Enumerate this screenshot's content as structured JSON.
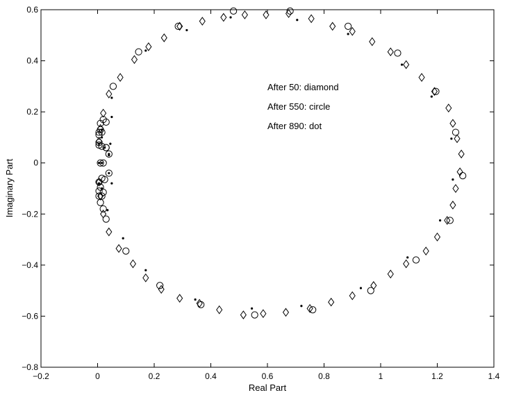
{
  "chart_data": {
    "type": "scatter",
    "title": "",
    "xlabel": "Real Part",
    "ylabel": "Imaginary Part",
    "xlim": [
      -0.2,
      1.4
    ],
    "ylim": [
      -0.8,
      0.6
    ],
    "xticks": [
      -0.2,
      0,
      0.2,
      0.4,
      0.6,
      0.8,
      1,
      1.2,
      1.4
    ],
    "xtick_labels": [
      "−0.2",
      "0",
      "0.2",
      "0.4",
      "0.6",
      "0.8",
      "1",
      "1.2",
      "1.4"
    ],
    "yticks": [
      -0.8,
      -0.6,
      -0.4,
      -0.2,
      0,
      0.2,
      0.4,
      0.6
    ],
    "ytick_labels": [
      "−0.8",
      "−0.6",
      "−0.4",
      "−0.2",
      "0",
      "0.2",
      "0.4",
      "0.6"
    ],
    "grid": false,
    "annotations": [
      "After 50:  diamond",
      "After 550:  circle",
      "After 890:  dot"
    ],
    "series": [
      {
        "marker": "diamond",
        "points": [
          [
            0.02,
            0.195
          ],
          [
            0.04,
            0.27
          ],
          [
            0.08,
            0.335
          ],
          [
            0.13,
            0.405
          ],
          [
            0.18,
            0.455
          ],
          [
            0.235,
            0.49
          ],
          [
            0.29,
            0.535
          ],
          [
            0.37,
            0.555
          ],
          [
            0.445,
            0.57
          ],
          [
            0.52,
            0.58
          ],
          [
            0.595,
            0.58
          ],
          [
            0.675,
            0.585
          ],
          [
            0.755,
            0.565
          ],
          [
            0.83,
            0.535
          ],
          [
            0.9,
            0.515
          ],
          [
            0.97,
            0.475
          ],
          [
            1.035,
            0.435
          ],
          [
            1.09,
            0.385
          ],
          [
            1.145,
            0.335
          ],
          [
            1.19,
            0.28
          ],
          [
            1.24,
            0.215
          ],
          [
            1.255,
            0.155
          ],
          [
            1.27,
            0.095
          ],
          [
            1.285,
            0.035
          ],
          [
            1.28,
            -0.035
          ],
          [
            1.265,
            -0.1
          ],
          [
            1.255,
            -0.165
          ],
          [
            1.235,
            -0.225
          ],
          [
            1.2,
            -0.29
          ],
          [
            1.16,
            -0.345
          ],
          [
            1.09,
            -0.395
          ],
          [
            1.035,
            -0.435
          ],
          [
            0.975,
            -0.48
          ],
          [
            0.9,
            -0.52
          ],
          [
            0.825,
            -0.545
          ],
          [
            0.75,
            -0.57
          ],
          [
            0.665,
            -0.585
          ],
          [
            0.585,
            -0.59
          ],
          [
            0.515,
            -0.595
          ],
          [
            0.43,
            -0.575
          ],
          [
            0.36,
            -0.55
          ],
          [
            0.29,
            -0.53
          ],
          [
            0.225,
            -0.495
          ],
          [
            0.17,
            -0.45
          ],
          [
            0.125,
            -0.395
          ],
          [
            0.075,
            -0.335
          ],
          [
            0.04,
            -0.27
          ],
          [
            0.02,
            -0.2
          ],
          [
            0.01,
            -0.13
          ],
          [
            0.005,
            -0.075
          ],
          [
            0.005,
            0.085
          ],
          [
            0.01,
            0.135
          ]
        ]
      },
      {
        "marker": "circle",
        "points": [
          [
            0.01,
            0.155
          ],
          [
            0.01,
            0.13
          ],
          [
            0.005,
            0.12
          ],
          [
            0.005,
            0.11
          ],
          [
            0.005,
            0.08
          ],
          [
            0.005,
            0.07
          ],
          [
            0.015,
            0.065
          ],
          [
            0.03,
            0.06
          ],
          [
            0.04,
            0.035
          ],
          [
            0.01,
            0.0
          ],
          [
            0.02,
            0.0
          ],
          [
            0.03,
            0.06
          ],
          [
            0.015,
            0.12
          ],
          [
            0.03,
            0.16
          ],
          [
            0.02,
            0.17
          ],
          [
            0.055,
            0.3
          ],
          [
            0.145,
            0.435
          ],
          [
            0.285,
            0.535
          ],
          [
            0.48,
            0.595
          ],
          [
            0.68,
            0.595
          ],
          [
            0.885,
            0.535
          ],
          [
            1.06,
            0.43
          ],
          [
            1.195,
            0.28
          ],
          [
            1.265,
            0.12
          ],
          [
            1.29,
            -0.05
          ],
          [
            1.245,
            -0.225
          ],
          [
            1.125,
            -0.38
          ],
          [
            0.965,
            -0.5
          ],
          [
            0.76,
            -0.575
          ],
          [
            0.555,
            -0.595
          ],
          [
            0.365,
            -0.555
          ],
          [
            0.22,
            -0.48
          ],
          [
            0.1,
            -0.345
          ],
          [
            0.03,
            -0.22
          ],
          [
            0.02,
            -0.18
          ],
          [
            0.01,
            -0.155
          ],
          [
            0.005,
            -0.13
          ],
          [
            0.005,
            -0.11
          ],
          [
            0.005,
            -0.075
          ],
          [
            0.015,
            -0.06
          ],
          [
            0.04,
            -0.04
          ],
          [
            0.025,
            -0.065
          ],
          [
            0.01,
            -0.095
          ],
          [
            0.02,
            -0.115
          ],
          [
            0.015,
            -0.13
          ]
        ]
      },
      {
        "marker": "dot",
        "points": [
          [
            0.05,
            0.255
          ],
          [
            0.05,
            0.18
          ],
          [
            0.045,
            0.075
          ],
          [
            0.04,
            0.035
          ],
          [
            0.025,
            0.06
          ],
          [
            0.015,
            0.13
          ],
          [
            0.015,
            0.1
          ],
          [
            0.005,
            0.075
          ],
          [
            0.005,
            0.0
          ],
          [
            0.015,
            0.0
          ],
          [
            0.005,
            -0.08
          ],
          [
            0.015,
            -0.1
          ],
          [
            0.04,
            -0.04
          ],
          [
            0.05,
            -0.08
          ],
          [
            0.035,
            -0.185
          ],
          [
            0.09,
            -0.295
          ],
          [
            0.17,
            -0.42
          ],
          [
            0.345,
            -0.535
          ],
          [
            0.545,
            -0.57
          ],
          [
            0.72,
            -0.56
          ],
          [
            0.93,
            -0.49
          ],
          [
            1.095,
            -0.37
          ],
          [
            1.21,
            -0.225
          ],
          [
            1.255,
            -0.065
          ],
          [
            1.25,
            0.095
          ],
          [
            1.18,
            0.26
          ],
          [
            1.075,
            0.385
          ],
          [
            0.885,
            0.505
          ],
          [
            0.705,
            0.56
          ],
          [
            0.47,
            0.57
          ],
          [
            0.315,
            0.52
          ],
          [
            0.17,
            0.44
          ],
          [
            0.04,
            0.03
          ]
        ]
      }
    ]
  }
}
